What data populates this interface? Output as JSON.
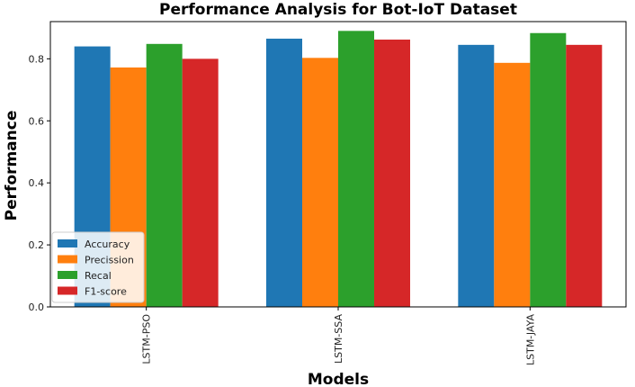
{
  "chart_data": {
    "type": "bar",
    "title": "Performance Analysis for Bot-IoT Dataset",
    "xlabel": "Models",
    "ylabel": "Performance",
    "categories": [
      "LSTM-PSO",
      "LSTM-SSA",
      "LSTM-JAYA"
    ],
    "series": [
      {
        "name": "Accuracy",
        "color": "#1f77b4",
        "values": [
          0.84,
          0.865,
          0.845
        ]
      },
      {
        "name": "Precission",
        "color": "#ff7f0e",
        "values": [
          0.772,
          0.803,
          0.787
        ]
      },
      {
        "name": "Recal",
        "color": "#2ca02c",
        "values": [
          0.848,
          0.89,
          0.883
        ]
      },
      {
        "name": "F1-score",
        "color": "#d62728",
        "values": [
          0.8,
          0.862,
          0.845
        ]
      }
    ],
    "ylim": [
      0,
      0.92
    ],
    "yticks": [
      0.0,
      0.2,
      0.4,
      0.6,
      0.8
    ],
    "ytick_labels": [
      "0.0",
      "0.2",
      "0.4",
      "0.6",
      "0.8"
    ],
    "grid": false,
    "legend_position": "lower-left"
  }
}
